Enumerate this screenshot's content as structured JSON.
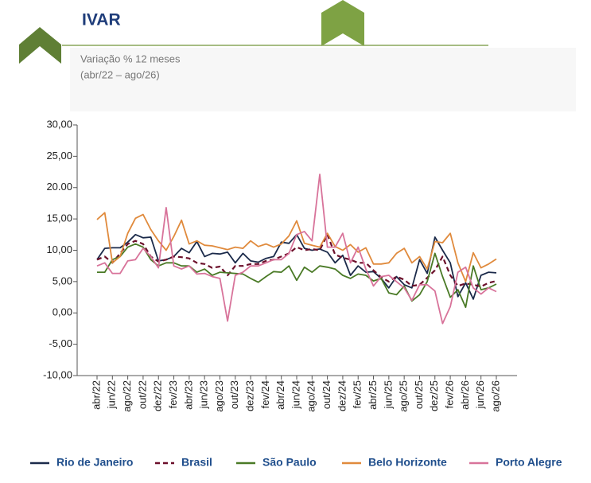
{
  "header": {
    "title": "IVAR",
    "subtitle": "Variação % 12 meses",
    "period": "(abr/22 – ago/26)"
  },
  "chart_data": {
    "type": "line",
    "categories": [
      "abr/22",
      null,
      "jun/22",
      null,
      "ago/22",
      null,
      "out/22",
      null,
      "dez/22",
      null,
      "fev/23",
      null,
      "abr/23",
      null,
      "jun/23",
      null,
      "ago/23",
      null,
      "out/23",
      null,
      "dez/23",
      null,
      "fev/24",
      null,
      "abr/24",
      null,
      "jun/24",
      null,
      "ago/24",
      null,
      "out/24",
      null,
      "dez/24",
      null,
      "fev/25",
      null,
      "abr/25",
      null,
      "jun/25",
      null,
      "ago/25",
      null,
      "out/25",
      null,
      "dez/25",
      null,
      "fev/26",
      null,
      "abr/26",
      null,
      "jun/26",
      null,
      "ago/26"
    ],
    "ylim": [
      -10,
      30
    ],
    "yticks": [
      {
        "value": -10,
        "label": "-10,00"
      },
      {
        "value": -5,
        "label": "-5,00"
      },
      {
        "value": 0,
        "label": "0,00"
      },
      {
        "value": 5,
        "label": "5,00"
      },
      {
        "value": 10,
        "label": "10,00"
      },
      {
        "value": 15,
        "label": "15,00"
      },
      {
        "value": 20,
        "label": "20.00"
      },
      {
        "value": 25,
        "label": "25,00"
      },
      {
        "value": 30,
        "label": "30,00"
      }
    ],
    "grid": false,
    "legend": "bottom",
    "series": [
      {
        "name": "Rio de Janeiro",
        "color": "#1b2a4a",
        "line_style": "solid",
        "values": [
          8.5,
          10.3,
          10.4,
          10.4,
          11.3,
          12.5,
          12.0,
          12.1,
          8.3,
          8.5,
          9.0,
          10.3,
          9.6,
          11.4,
          9.0,
          9.5,
          9.4,
          9.7,
          8.0,
          9.5,
          8.3,
          8.1,
          8.7,
          9.0,
          11.3,
          11.1,
          12.5,
          10.3,
          10.0,
          10.2,
          9.7,
          8.0,
          9.2,
          6.0,
          7.5,
          6.5,
          6.6,
          5.5,
          4.0,
          5.8,
          4.5,
          4.0,
          8.5,
          6.3,
          12.1,
          10.0,
          8.0,
          2.6,
          4.8,
          2.2,
          6.0,
          6.5,
          6.4
        ]
      },
      {
        "name": "Brasil",
        "color": "#6b0f2a",
        "line_style": "dashed",
        "values": [
          8.5,
          9.0,
          8.0,
          9.5,
          11.0,
          11.5,
          11.0,
          9.0,
          8.2,
          8.5,
          9.0,
          8.9,
          8.7,
          8.0,
          7.8,
          7.2,
          7.4,
          6.0,
          7.5,
          7.5,
          7.8,
          7.8,
          8.3,
          8.5,
          9.0,
          9.5,
          10.5,
          10.0,
          10.2,
          10.0,
          12.5,
          9.3,
          8.8,
          8.5,
          8.0,
          8.0,
          6.8,
          5.7,
          5.0,
          5.8,
          5.3,
          4.3,
          4.5,
          5.6,
          6.8,
          9.0,
          6.0,
          4.3,
          4.7,
          4.5,
          4.2,
          4.8,
          5.1
        ]
      },
      {
        "name": "São Paulo",
        "color": "#4a7a26",
        "line_style": "solid",
        "values": [
          6.5,
          6.5,
          8.5,
          9.0,
          10.5,
          11.0,
          10.5,
          8.5,
          7.5,
          8.0,
          8.0,
          7.5,
          7.5,
          6.5,
          7.0,
          6.0,
          6.5,
          6.4,
          6.3,
          6.2,
          5.5,
          4.9,
          5.8,
          6.6,
          6.5,
          7.5,
          5.2,
          7.3,
          6.5,
          7.5,
          7.3,
          7.0,
          6.0,
          5.5,
          6.2,
          6.0,
          5.1,
          5.5,
          3.2,
          2.9,
          4.3,
          1.9,
          2.9,
          5.0,
          9.5,
          5.8,
          2.5,
          3.7,
          0.9,
          7.5,
          3.7,
          4.0,
          4.6
        ]
      },
      {
        "name": "Belo Horizonte",
        "color": "#e08a3c",
        "line_style": "solid",
        "values": [
          14.9,
          16.0,
          8.0,
          9.0,
          12.7,
          15.1,
          15.7,
          13.3,
          11.5,
          10.0,
          12.2,
          14.8,
          11.0,
          11.5,
          10.8,
          10.7,
          10.4,
          10.1,
          10.5,
          10.3,
          11.5,
          10.6,
          11.0,
          10.5,
          11.0,
          12.3,
          14.7,
          11.1,
          10.8,
          10.5,
          12.7,
          10.6,
          10.0,
          10.9,
          9.7,
          10.4,
          7.8,
          7.8,
          8.0,
          9.5,
          10.3,
          8.0,
          9.0,
          7.0,
          11.4,
          11.2,
          12.7,
          8.0,
          5.0,
          9.6,
          7.2,
          7.8,
          8.6
        ]
      },
      {
        "name": "Porto Alegre",
        "color": "#d8739a",
        "line_style": "solid",
        "values": [
          7.5,
          8.0,
          6.3,
          6.3,
          8.3,
          8.5,
          10.3,
          9.0,
          7.2,
          16.8,
          7.5,
          7.0,
          7.5,
          6.2,
          6.3,
          5.8,
          5.5,
          -1.3,
          6.0,
          6.5,
          7.5,
          7.5,
          8.0,
          8.5,
          8.5,
          9.5,
          12.5,
          13.0,
          11.5,
          22.1,
          10.5,
          10.5,
          12.7,
          8.0,
          10.5,
          7.0,
          4.3,
          5.8,
          6.0,
          5.0,
          4.0,
          2.0,
          4.5,
          4.5,
          3.5,
          -1.7,
          1.0,
          6.5,
          7.3,
          4.0,
          3.0,
          4.0,
          3.4
        ]
      }
    ]
  }
}
